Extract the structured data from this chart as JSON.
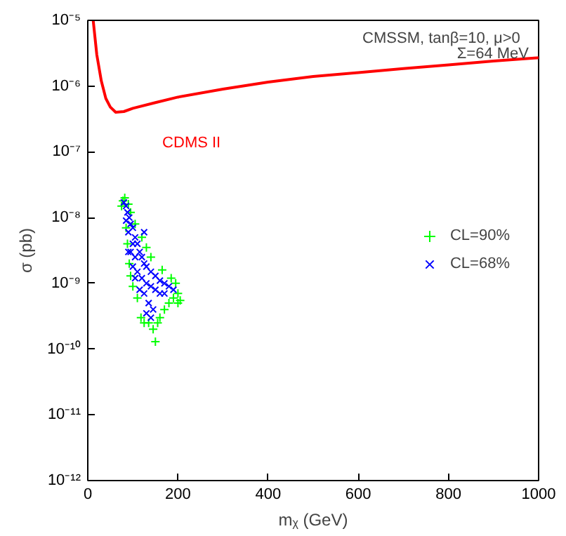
{
  "chart_data": {
    "type": "scatter",
    "xlabel": "mᵪ (GeV)",
    "ylabel": "σ (pb)",
    "annotations": [
      "CMSSM,  tanβ=10,  μ>0",
      "Σ=64 MeV"
    ],
    "log": "y",
    "grid": false,
    "legend": "right",
    "xlim": [
      0,
      1000
    ],
    "xticks": [
      0,
      200,
      400,
      600,
      800,
      1000
    ],
    "ylim": [
      1e-12,
      1e-05
    ],
    "yticks": [
      {
        "value": 1e-12,
        "label": "10⁻¹²"
      },
      {
        "value": 1e-11,
        "label": "10⁻¹¹"
      },
      {
        "value": 1e-10,
        "label": "10⁻¹⁰"
      },
      {
        "value": 1e-09,
        "label": "10⁻⁹"
      },
      {
        "value": 1e-08,
        "label": "10⁻⁸"
      },
      {
        "value": 1e-07,
        "label": "10⁻⁷"
      },
      {
        "value": 1e-06,
        "label": "10⁻⁶"
      },
      {
        "value": 1e-05,
        "label": "10⁻⁵"
      }
    ],
    "series": [
      {
        "name": "CDMS II",
        "type": "line",
        "color": "#ff0000",
        "line_style": "solid",
        "x": [
          12,
          20,
          30,
          40,
          50,
          62,
          80,
          100,
          150,
          200,
          300,
          400,
          500,
          600,
          700,
          800,
          900,
          1000
        ],
        "values": [
          1e-05,
          3e-06,
          1.2e-06,
          6.5e-07,
          4.8e-07,
          4e-07,
          4.1e-07,
          4.6e-07,
          5.6e-07,
          6.8e-07,
          9e-07,
          1.15e-06,
          1.4e-06,
          1.6e-06,
          1.85e-06,
          2.1e-06,
          2.4e-06,
          2.7e-06
        ]
      },
      {
        "name": "CL=90%",
        "marker": "cross",
        "color": "#00ff00",
        "x": [
          78,
          82,
          75,
          85,
          88,
          92,
          95,
          100,
          110,
          118,
          125,
          135,
          145,
          150,
          155,
          160,
          170,
          180,
          190,
          200,
          205,
          195,
          185,
          200,
          165,
          140,
          130,
          120,
          105,
          95,
          90
        ],
        "values": [
          1.8e-08,
          2e-08,
          1.5e-08,
          7e-09,
          4e-09,
          2e-09,
          1.3e-09,
          9e-10,
          6e-10,
          3e-10,
          2.5e-10,
          2.5e-10,
          2e-10,
          1.3e-10,
          2.5e-10,
          3e-10,
          4e-10,
          5e-10,
          6e-10,
          5e-10,
          5.5e-10,
          1e-09,
          1.2e-09,
          7e-10,
          1.6e-09,
          2.5e-09,
          3.5e-09,
          5e-09,
          8e-09,
          1.2e-08,
          1.6e-08
        ]
      },
      {
        "name": "CL=68%",
        "marker": "x",
        "color": "#0000ff",
        "x": [
          80,
          85,
          88,
          92,
          95,
          85,
          90,
          100,
          105,
          110,
          100,
          95,
          105,
          115,
          120,
          125,
          130,
          140,
          150,
          160,
          170,
          180,
          190,
          110,
          120,
          130,
          140,
          150,
          160,
          170,
          125,
          135,
          145,
          130,
          115,
          105,
          100,
          90,
          140,
          125
        ],
        "values": [
          1.7e-08,
          1.5e-08,
          1.2e-08,
          1e-08,
          8e-09,
          9e-09,
          6e-09,
          7e-09,
          5e-09,
          4e-09,
          4e-09,
          3e-09,
          2.5e-09,
          3e-09,
          2.5e-09,
          2e-09,
          1.8e-09,
          1.5e-09,
          1.3e-09,
          1.1e-09,
          1e-09,
          9e-10,
          8e-10,
          1.5e-09,
          1.2e-09,
          1e-09,
          9e-10,
          8e-10,
          7e-10,
          7e-10,
          7e-10,
          5e-10,
          4e-10,
          3.5e-10,
          8e-10,
          1.2e-09,
          1.8e-09,
          3e-09,
          3e-10,
          6e-09
        ]
      }
    ]
  }
}
